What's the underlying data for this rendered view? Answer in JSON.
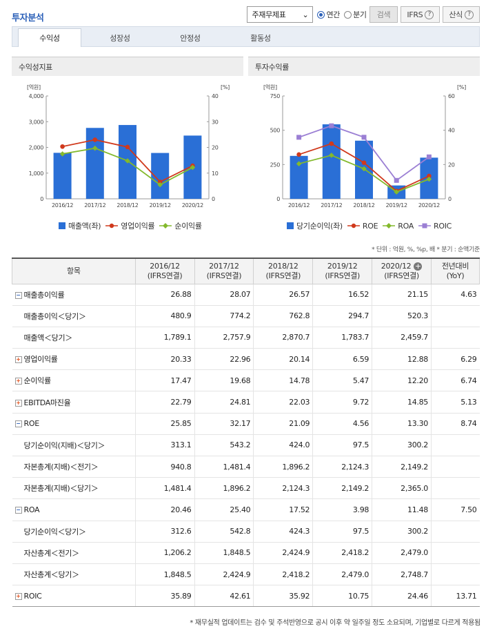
{
  "page": {
    "title": "투자분석"
  },
  "controls": {
    "select_value": "주재무제표",
    "radio_annual": "연간",
    "radio_quarter": "분기",
    "search": "검색",
    "ifrs": "IFRS",
    "formula": "산식"
  },
  "tabs": [
    "수익성",
    "성장성",
    "안정성",
    "활동성"
  ],
  "panels": {
    "left": "수익성지표",
    "right": "투자수익률"
  },
  "colors": {
    "bar": "#2a6fd6",
    "line_red": "#d0391c",
    "line_green": "#83b92c",
    "line_purple": "#9b7fd4"
  },
  "chart_data": [
    {
      "type": "bar",
      "categories": [
        "2016/12",
        "2017/12",
        "2018/12",
        "2019/12",
        "2020/12"
      ],
      "left_unit": "[억원]",
      "right_unit": "[%]",
      "ylim": [
        0,
        4000
      ],
      "y2lim": [
        0,
        40
      ],
      "yticks": [
        "4,000",
        "3,000",
        "2,000",
        "1,000",
        "0"
      ],
      "y2ticks": [
        "40",
        "30",
        "20",
        "10",
        "0"
      ],
      "series": [
        {
          "name": "매출액(좌)",
          "type": "bar",
          "values": [
            1789.1,
            2757.9,
            2870.7,
            1783.7,
            2459.7
          ]
        },
        {
          "name": "영업이익률",
          "type": "line",
          "axis": "right",
          "values": [
            20.33,
            22.96,
            20.14,
            6.59,
            12.88
          ]
        },
        {
          "name": "순이익률",
          "type": "line",
          "axis": "right",
          "values": [
            17.47,
            19.68,
            14.78,
            5.47,
            12.2
          ]
        }
      ],
      "legend_position": "bottom"
    },
    {
      "type": "bar",
      "categories": [
        "2016/12",
        "2017/12",
        "2018/12",
        "2019/12",
        "2020/12"
      ],
      "left_unit": "[억원]",
      "right_unit": "[%]",
      "ylim": [
        0,
        750
      ],
      "y2lim": [
        0,
        60
      ],
      "yticks": [
        "750",
        "500",
        "250",
        "0"
      ],
      "y2ticks": [
        "60",
        "40",
        "20",
        "0"
      ],
      "series": [
        {
          "name": "당기순이익(좌)",
          "type": "bar",
          "values": [
            313.1,
            543.2,
            424.0,
            97.5,
            300.2
          ]
        },
        {
          "name": "ROE",
          "type": "line",
          "axis": "right",
          "values": [
            25.85,
            32.17,
            21.09,
            4.56,
            13.3
          ]
        },
        {
          "name": "ROA",
          "type": "line",
          "axis": "right",
          "values": [
            20.46,
            25.4,
            17.52,
            3.98,
            11.48
          ]
        },
        {
          "name": "ROIC",
          "type": "line",
          "axis": "right",
          "values": [
            35.89,
            42.61,
            35.92,
            10.75,
            24.46
          ]
        }
      ],
      "legend_position": "bottom"
    }
  ],
  "note": "* 단위 : 억원, %, %p, 배   * 분기 : 순액기준",
  "table": {
    "headers": [
      "항목",
      "2016/12\n(IFRS연결)",
      "2017/12\n(IFRS연결)",
      "2018/12\n(IFRS연결)",
      "2019/12\n(IFRS연결)",
      "2020/12\n(IFRS연결)",
      "전년대비\n(YoY)"
    ],
    "rows": [
      {
        "label": "매출총이익률",
        "toggle": "minus",
        "level": 0,
        "values": [
          "26.88",
          "28.07",
          "26.57",
          "16.52",
          "21.15",
          "4.63"
        ]
      },
      {
        "label": "매출총이익＜당기＞",
        "toggle": "",
        "level": 1,
        "values": [
          "480.9",
          "774.2",
          "762.8",
          "294.7",
          "520.3",
          ""
        ]
      },
      {
        "label": "매출액＜당기＞",
        "toggle": "",
        "level": 1,
        "values": [
          "1,789.1",
          "2,757.9",
          "2,870.7",
          "1,783.7",
          "2,459.7",
          ""
        ]
      },
      {
        "label": "영업이익률",
        "toggle": "plus",
        "level": 0,
        "values": [
          "20.33",
          "22.96",
          "20.14",
          "6.59",
          "12.88",
          "6.29"
        ]
      },
      {
        "label": "순이익률",
        "toggle": "plus",
        "level": 0,
        "values": [
          "17.47",
          "19.68",
          "14.78",
          "5.47",
          "12.20",
          "6.74"
        ]
      },
      {
        "label": "EBITDA마진율",
        "toggle": "plus",
        "level": 0,
        "values": [
          "22.79",
          "24.81",
          "22.03",
          "9.72",
          "14.85",
          "5.13"
        ]
      },
      {
        "label": "ROE",
        "toggle": "minus",
        "level": 0,
        "values": [
          "25.85",
          "32.17",
          "21.09",
          "4.56",
          "13.30",
          "8.74"
        ]
      },
      {
        "label": "당기순이익(지배)＜당기＞",
        "toggle": "",
        "level": 1,
        "values": [
          "313.1",
          "543.2",
          "424.0",
          "97.5",
          "300.2",
          ""
        ]
      },
      {
        "label": "자본총계(지배)＜전기＞",
        "toggle": "",
        "level": 1,
        "values": [
          "940.8",
          "1,481.4",
          "1,896.2",
          "2,124.3",
          "2,149.2",
          ""
        ]
      },
      {
        "label": "자본총계(지배)＜당기＞",
        "toggle": "",
        "level": 1,
        "values": [
          "1,481.4",
          "1,896.2",
          "2,124.3",
          "2,149.2",
          "2,365.0",
          ""
        ]
      },
      {
        "label": "ROA",
        "toggle": "minus",
        "level": 0,
        "values": [
          "20.46",
          "25.40",
          "17.52",
          "3.98",
          "11.48",
          "7.50"
        ]
      },
      {
        "label": "당기순이익＜당기＞",
        "toggle": "",
        "level": 1,
        "values": [
          "312.6",
          "542.8",
          "424.3",
          "97.5",
          "300.2",
          ""
        ]
      },
      {
        "label": "자산총계＜전기＞",
        "toggle": "",
        "level": 1,
        "values": [
          "1,206.2",
          "1,848.5",
          "2,424.9",
          "2,418.2",
          "2,479.0",
          ""
        ]
      },
      {
        "label": "자산총계＜당기＞",
        "toggle": "",
        "level": 1,
        "values": [
          "1,848.5",
          "2,424.9",
          "2,418.2",
          "2,479.0",
          "2,748.7",
          ""
        ]
      },
      {
        "label": "ROIC",
        "toggle": "plus",
        "level": 0,
        "values": [
          "35.89",
          "42.61",
          "35.92",
          "10.75",
          "24.46",
          "13.71"
        ]
      }
    ]
  },
  "footnote": "* 재무실적 업데이트는 검수 및 주석반영으로 공시 이후 약 일주일 정도 소요되며, 기업별로 다르게 적용됨"
}
